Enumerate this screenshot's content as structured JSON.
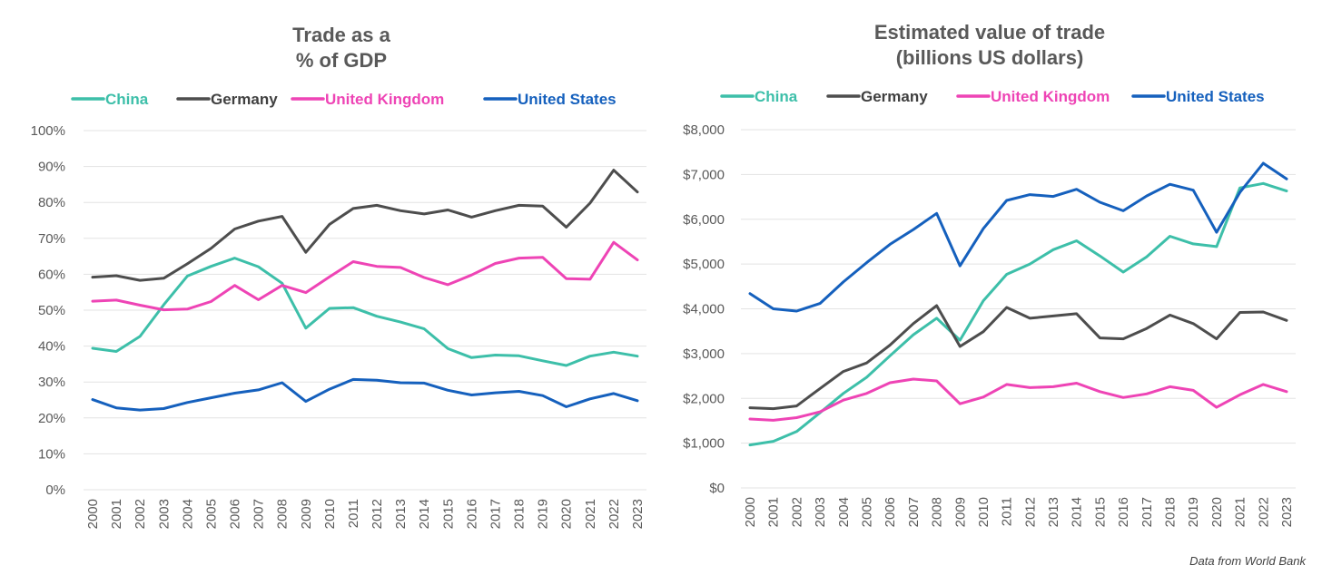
{
  "source_note": "Data from World Bank",
  "colors": {
    "China": "#3dbfa9",
    "Germany": "#4d4d4d",
    "United Kingdom": "#ee44b5",
    "United States": "#1560bd",
    "grid": "#e3e3e3",
    "text": "#595959"
  },
  "chart_data": [
    {
      "type": "line",
      "title_lines": [
        "Trade as a",
        "% of GDP"
      ],
      "x": [
        "2000",
        "2001",
        "2002",
        "2003",
        "2004",
        "2005",
        "2006",
        "2007",
        "2008",
        "2009",
        "2010",
        "2011",
        "2012",
        "2013",
        "2014",
        "2015",
        "2016",
        "2017",
        "2018",
        "2019",
        "2020",
        "2021",
        "2022",
        "2023"
      ],
      "ylim": [
        0,
        100
      ],
      "y_ticks": [
        0,
        10,
        20,
        30,
        40,
        50,
        60,
        70,
        80,
        90,
        100
      ],
      "y_tick_labels": [
        "0%",
        "10%",
        "20%",
        "30%",
        "40%",
        "50%",
        "60%",
        "70%",
        "80%",
        "90%",
        "100%"
      ],
      "grid": true,
      "legend_position": "top",
      "series": [
        {
          "name": "China",
          "values": [
            39.4,
            38.5,
            42.7,
            51.5,
            59.5,
            62.2,
            64.5,
            62.1,
            57.5,
            45.0,
            50.5,
            50.7,
            48.3,
            46.7,
            44.8,
            39.3,
            36.8,
            37.5,
            37.3,
            35.9,
            34.6,
            37.2,
            38.3,
            37.2
          ]
        },
        {
          "name": "Germany",
          "values": [
            59.2,
            59.6,
            58.3,
            58.9,
            62.9,
            67.2,
            72.6,
            74.8,
            76.1,
            66.1,
            73.9,
            78.3,
            79.2,
            77.7,
            76.8,
            77.9,
            75.9,
            77.7,
            79.2,
            79.0,
            73.1,
            79.8,
            89.0,
            82.9
          ]
        },
        {
          "name": "United Kingdom",
          "values": [
            52.5,
            52.8,
            51.4,
            50.1,
            50.3,
            52.4,
            56.9,
            52.9,
            56.9,
            54.9,
            59.3,
            63.5,
            62.2,
            61.9,
            59.1,
            57.1,
            59.8,
            63.0,
            64.5,
            64.7,
            58.8,
            58.6,
            68.9,
            64.0
          ]
        },
        {
          "name": "United States",
          "values": [
            25.1,
            22.8,
            22.2,
            22.6,
            24.3,
            25.6,
            26.9,
            27.8,
            29.8,
            24.6,
            28.0,
            30.7,
            30.5,
            29.8,
            29.7,
            27.7,
            26.4,
            27.0,
            27.4,
            26.2,
            23.1,
            25.3,
            26.8,
            24.8
          ]
        }
      ]
    },
    {
      "type": "line",
      "title_lines": [
        "Estimated value of trade",
        "(billions US dollars)"
      ],
      "x": [
        "2000",
        "2001",
        "2002",
        "2003",
        "2004",
        "2005",
        "2006",
        "2007",
        "2008",
        "2009",
        "2010",
        "2011",
        "2012",
        "2013",
        "2014",
        "2015",
        "2016",
        "2017",
        "2018",
        "2019",
        "2020",
        "2021",
        "2022",
        "2023"
      ],
      "ylim": [
        0,
        8000
      ],
      "y_ticks": [
        0,
        1000,
        2000,
        3000,
        4000,
        5000,
        6000,
        7000,
        8000
      ],
      "y_tick_labels": [
        "$0",
        "$1,000",
        "$2,000",
        "$3,000",
        "$4,000",
        "$5,000",
        "$6,000",
        "$7,000",
        "$8,000"
      ],
      "grid": true,
      "legend_position": "top",
      "series": [
        {
          "name": "China",
          "values": [
            960,
            1040,
            1260,
            1680,
            2110,
            2470,
            2950,
            3420,
            3790,
            3300,
            4180,
            4770,
            5000,
            5320,
            5520,
            5180,
            4820,
            5160,
            5620,
            5450,
            5390,
            6700,
            6800,
            6630
          ]
        },
        {
          "name": "Germany",
          "values": [
            1790,
            1770,
            1830,
            2220,
            2600,
            2790,
            3190,
            3670,
            4070,
            3160,
            3490,
            4030,
            3790,
            3840,
            3890,
            3350,
            3330,
            3560,
            3860,
            3670,
            3330,
            3920,
            3930,
            3740
          ]
        },
        {
          "name": "United Kingdom",
          "values": [
            1540,
            1510,
            1570,
            1700,
            1960,
            2110,
            2350,
            2430,
            2390,
            1880,
            2030,
            2310,
            2240,
            2260,
            2340,
            2150,
            2020,
            2100,
            2260,
            2180,
            1800,
            2080,
            2310,
            2150
          ]
        },
        {
          "name": "United States",
          "values": [
            4340,
            4000,
            3950,
            4120,
            4600,
            5030,
            5440,
            5770,
            6130,
            4960,
            5790,
            6420,
            6550,
            6510,
            6670,
            6380,
            6190,
            6520,
            6780,
            6650,
            5710,
            6600,
            7250,
            6900
          ]
        }
      ]
    }
  ]
}
